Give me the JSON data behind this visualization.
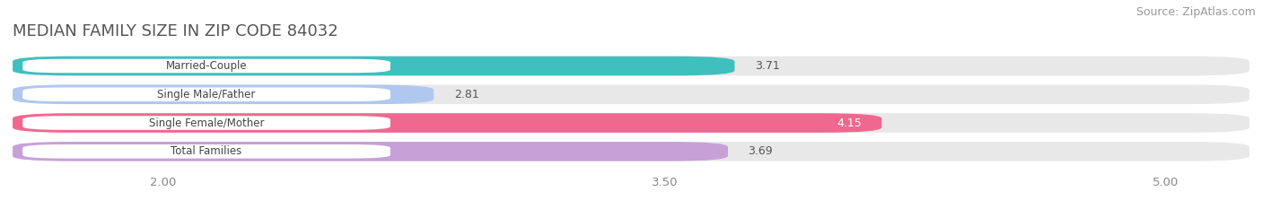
{
  "title": "MEDIAN FAMILY SIZE IN ZIP CODE 84032",
  "source": "Source: ZipAtlas.com",
  "categories": [
    "Married-Couple",
    "Single Male/Father",
    "Single Female/Mother",
    "Total Families"
  ],
  "values": [
    3.71,
    2.81,
    4.15,
    3.69
  ],
  "bar_colors": [
    "#40bfbf",
    "#b0c8f0",
    "#f06890",
    "#c8a0d8"
  ],
  "xlim": [
    1.55,
    5.25
  ],
  "xticks": [
    2.0,
    3.5,
    5.0
  ],
  "xtick_labels": [
    "2.00",
    "3.50",
    "5.00"
  ],
  "bar_height": 0.68,
  "background_color": "#ffffff",
  "bar_bg_color": "#e8e8e8",
  "title_fontsize": 13,
  "source_fontsize": 9,
  "label_fontsize": 8.5,
  "value_fontsize": 9
}
